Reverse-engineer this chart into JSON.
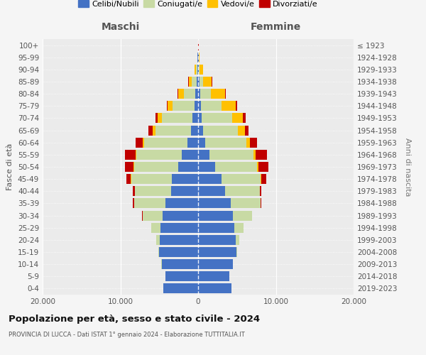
{
  "age_groups": [
    "0-4",
    "5-9",
    "10-14",
    "15-19",
    "20-24",
    "25-29",
    "30-34",
    "35-39",
    "40-44",
    "45-49",
    "50-54",
    "55-59",
    "60-64",
    "65-69",
    "70-74",
    "75-79",
    "80-84",
    "85-89",
    "90-94",
    "95-99",
    "100+"
  ],
  "birth_years": [
    "2019-2023",
    "2014-2018",
    "2009-2013",
    "2004-2008",
    "1999-2003",
    "1994-1998",
    "1989-1993",
    "1984-1988",
    "1979-1983",
    "1974-1978",
    "1969-1973",
    "1964-1968",
    "1959-1963",
    "1954-1958",
    "1949-1953",
    "1944-1948",
    "1939-1943",
    "1934-1938",
    "1929-1933",
    "1924-1928",
    "≤ 1923"
  ],
  "colors": {
    "celibi": "#4472c4",
    "coniugati": "#c8daa4",
    "vedovi": "#ffc000",
    "divorziati": "#c00000"
  },
  "maschi": {
    "celibi": [
      4500,
      4200,
      4700,
      5000,
      4900,
      4800,
      4600,
      4200,
      3500,
      3400,
      2600,
      2100,
      1400,
      900,
      700,
      500,
      350,
      200,
      120,
      60,
      20
    ],
    "coniugati": [
      2,
      5,
      20,
      100,
      500,
      1200,
      2500,
      4000,
      4600,
      5200,
      5600,
      5800,
      5500,
      4600,
      4000,
      2800,
      1500,
      600,
      150,
      40,
      10
    ],
    "vedovi": [
      0,
      0,
      0,
      0,
      1,
      2,
      5,
      10,
      20,
      50,
      100,
      150,
      200,
      350,
      500,
      600,
      700,
      400,
      150,
      30,
      5
    ],
    "divorziati": [
      0,
      0,
      0,
      0,
      10,
      30,
      80,
      150,
      250,
      600,
      1100,
      1400,
      900,
      500,
      300,
      150,
      100,
      50,
      20,
      5,
      1
    ]
  },
  "femmine": {
    "celibi": [
      4300,
      4000,
      4500,
      4900,
      4800,
      4700,
      4500,
      4200,
      3500,
      3000,
      2200,
      1500,
      900,
      600,
      450,
      350,
      250,
      150,
      100,
      50,
      20
    ],
    "coniugati": [
      2,
      3,
      15,
      90,
      480,
      1100,
      2400,
      3800,
      4400,
      5000,
      5400,
      5600,
      5300,
      4500,
      3900,
      2700,
      1400,
      500,
      120,
      30,
      10
    ],
    "vedovi": [
      0,
      0,
      0,
      1,
      2,
      5,
      10,
      20,
      40,
      100,
      200,
      300,
      500,
      900,
      1400,
      1800,
      1800,
      1100,
      400,
      80,
      15
    ],
    "divorziati": [
      0,
      0,
      0,
      0,
      5,
      20,
      60,
      100,
      200,
      700,
      1200,
      1500,
      900,
      500,
      400,
      200,
      100,
      60,
      20,
      5,
      1
    ]
  },
  "xlim": 20000,
  "title": "Popolazione per età, sesso e stato civile - 2024",
  "subtitle": "PROVINCIA DI LUCCA - Dati ISTAT 1° gennaio 2024 - Elaborazione TUTTITALIA.IT",
  "ylabel": "Fasce di età",
  "ylabel_right": "Anni di nascita",
  "xlabel_left": "Maschi",
  "xlabel_right": "Femmine",
  "bg_color": "#f5f5f5",
  "plot_bg": "#ebebeb"
}
